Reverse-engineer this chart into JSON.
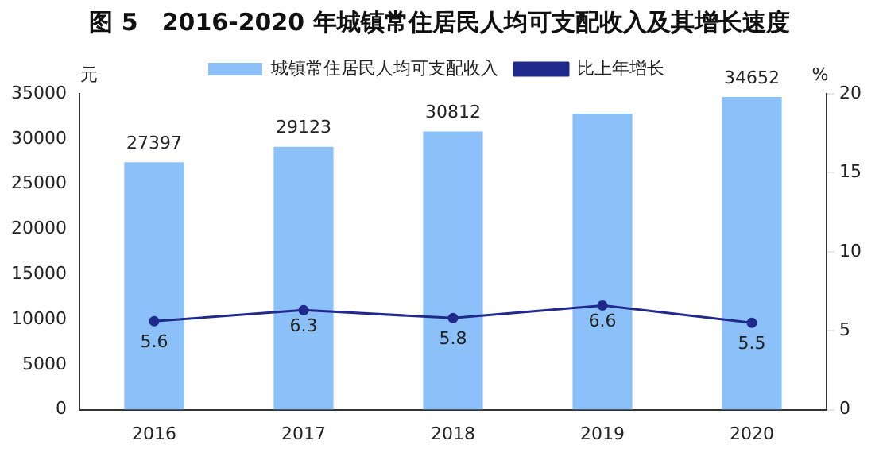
{
  "chart_data": {
    "type": "bar",
    "title": "图 5　2016-2020 年城镇常住居民人均可支配收入及其增长速度",
    "ylabel": "元",
    "y2label": "%",
    "categories": [
      "2016",
      "2017",
      "2018",
      "2019",
      "2020"
    ],
    "series": [
      {
        "name": "城镇常住居民人均可支配收入",
        "color": "#8cc0f8",
        "values": [
          27397,
          29123,
          30812,
          32800,
          34652
        ],
        "value_labels": [
          "27397",
          "29123",
          "30812",
          null,
          "34652"
        ]
      },
      {
        "name": "比上年增长",
        "type": "line",
        "axis": "y2",
        "color": "#1f2a8c",
        "values": [
          5.6,
          6.3,
          5.8,
          6.6,
          5.5
        ],
        "value_labels": [
          "5.6",
          "6.3",
          "5.8",
          "6.6",
          "5.5"
        ]
      }
    ],
    "ylim": [
      0,
      35000
    ],
    "yticks": [
      0,
      5000,
      10000,
      15000,
      20000,
      25000,
      30000,
      35000
    ],
    "y2lim": [
      0,
      20
    ],
    "y2ticks": [
      0,
      5,
      10,
      15,
      20
    ],
    "grid": false,
    "legend": "top",
    "marker": "circle",
    "line_style": "solid"
  }
}
